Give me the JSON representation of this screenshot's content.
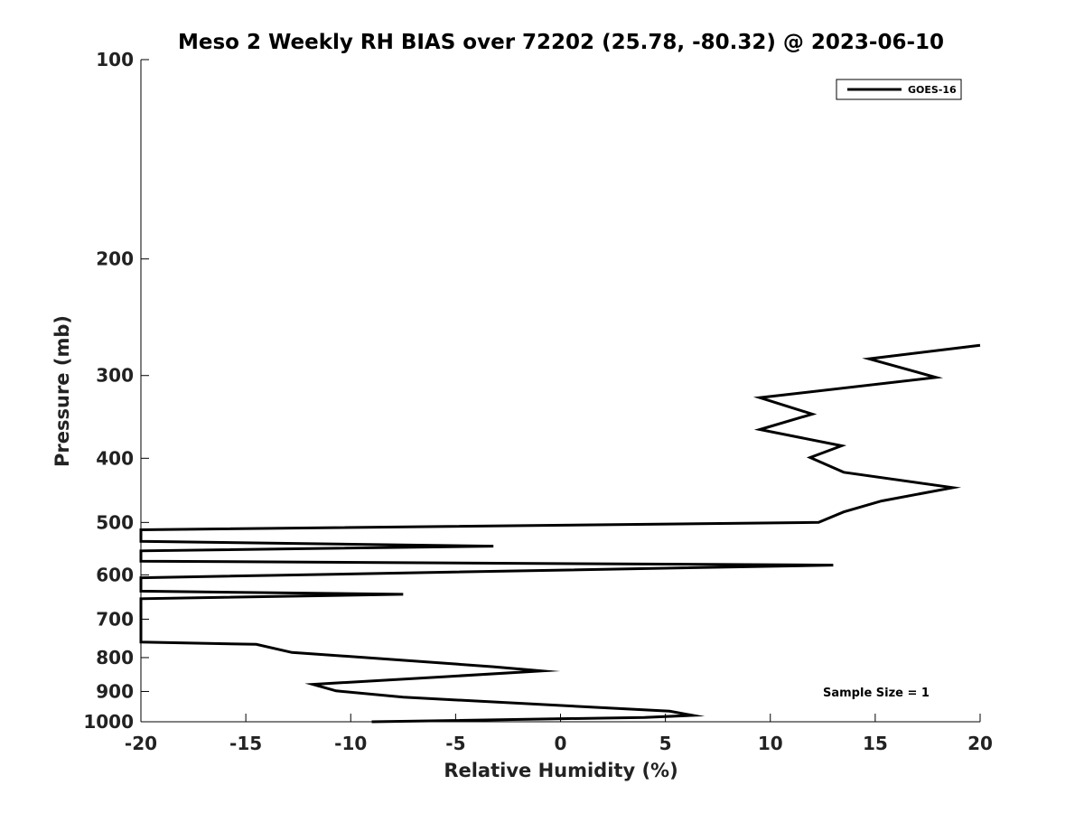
{
  "chart_data": {
    "type": "line",
    "title": "Meso 2 Weekly RH BIAS over 72202 (25.78, -80.32) @ 2023-06-10",
    "xlabel": "Relative Humidity (%)",
    "ylabel": "Pressure (mb)",
    "xlim": [
      -20,
      20
    ],
    "ylim": [
      100,
      1000
    ],
    "y_scale": "log",
    "y_reversed": true,
    "x_ticks": [
      -20,
      -15,
      -10,
      -5,
      0,
      5,
      10,
      15,
      20
    ],
    "x_tick_labels": [
      "-20",
      "-15",
      "-10",
      "-5",
      "0",
      "5",
      "10",
      "15",
      "20"
    ],
    "y_ticks": [
      100,
      200,
      300,
      400,
      500,
      600,
      700,
      800,
      900,
      1000
    ],
    "y_tick_labels": [
      "100",
      "200",
      "300",
      "400",
      "500",
      "600",
      "700",
      "800",
      "900",
      "1000"
    ],
    "grid": false,
    "legend_position": "top-right",
    "series": [
      {
        "name": "GOES-16",
        "color": "#000000",
        "x": [
          20,
          14.7,
          17.9,
          9.5,
          12,
          9.5,
          13.4,
          11.9,
          13.5,
          18.7,
          15.3,
          13.5,
          12.3,
          -20,
          -20,
          -3.2,
          -20,
          -20,
          13,
          -20,
          -20,
          -7.5,
          -20,
          -20,
          -14.5,
          -12.8,
          -8.5,
          -3.2,
          -0.9,
          -5.5,
          -11.8,
          -10.7,
          -7.5,
          5.2,
          6.3,
          4,
          -9
        ],
        "y": [
          270,
          283,
          302,
          324,
          343,
          362,
          383,
          399,
          420,
          443,
          464,
          482,
          500,
          513,
          534,
          543,
          552,
          572,
          580,
          606,
          635,
          642,
          652,
          758,
          764,
          786,
          803,
          826,
          838,
          855,
          878,
          898,
          918,
          964,
          978,
          985,
          1000
        ]
      }
    ],
    "annotations": [
      "Sample Size = 1"
    ]
  }
}
